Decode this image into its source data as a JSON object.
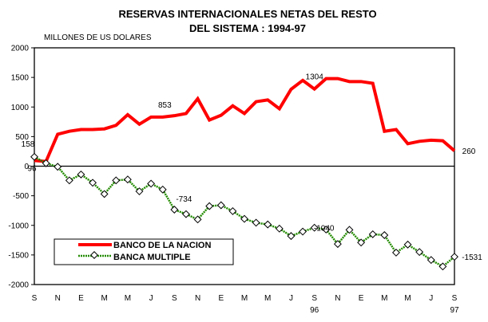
{
  "chart_data": {
    "type": "line",
    "title": [
      "RESERVAS INTERNACIONALES NETAS DEL RESTO",
      "DEL SISTEMA : 1994-97"
    ],
    "ylabel": "MILLONES DE US DOLARES",
    "ylim": [
      -2000,
      2000
    ],
    "yticks": [
      2000,
      1500,
      1000,
      500,
      0,
      -500,
      -1000,
      -1500,
      -2000
    ],
    "x_tick_labels": [
      "S",
      "N",
      "E",
      "M",
      "M",
      "J",
      "S",
      "N",
      "E",
      "M",
      "M",
      "J",
      "S",
      "N",
      "E",
      "M",
      "M",
      "J",
      "S"
    ],
    "year_labels": [
      {
        "index": 24,
        "label": "96"
      },
      {
        "index": 36,
        "label": "97"
      }
    ],
    "grid": false,
    "legend_position": "bottom-left",
    "series": [
      {
        "name": "BANCO DE LA NACION",
        "color": "#ff0000",
        "values": [
          96,
          80,
          540,
          590,
          620,
          620,
          630,
          690,
          870,
          710,
          830,
          830,
          853,
          890,
          1140,
          780,
          860,
          1020,
          890,
          1090,
          1120,
          970,
          1300,
          1450,
          1304,
          1480,
          1480,
          1430,
          1430,
          1400,
          590,
          620,
          380,
          420,
          440,
          430,
          260
        ]
      },
      {
        "name": "BANCA MULTIPLE",
        "color": "#228b00",
        "values": [
          158,
          50,
          -10,
          -240,
          -140,
          -280,
          -470,
          -240,
          -225,
          -425,
          -295,
          -395,
          -734,
          -810,
          -900,
          -675,
          -660,
          -760,
          -890,
          -955,
          -985,
          -1055,
          -1180,
          -1105,
          -1040,
          -1070,
          -1315,
          -1075,
          -1290,
          -1150,
          -1165,
          -1460,
          -1325,
          -1450,
          -1585,
          -1695,
          -1531
        ]
      }
    ],
    "annotations": [
      {
        "series": 1,
        "index": 0,
        "label": "158"
      },
      {
        "series": 0,
        "index": 0,
        "label": "96"
      },
      {
        "series": 0,
        "index": 12,
        "label": "853"
      },
      {
        "series": 0,
        "index": 24,
        "label": "1304"
      },
      {
        "series": 0,
        "index": 36,
        "label": "260"
      },
      {
        "series": 1,
        "index": 12,
        "label": "-734"
      },
      {
        "series": 1,
        "index": 24,
        "label": "-1040"
      },
      {
        "series": 1,
        "index": 36,
        "label": "-1531"
      }
    ]
  }
}
